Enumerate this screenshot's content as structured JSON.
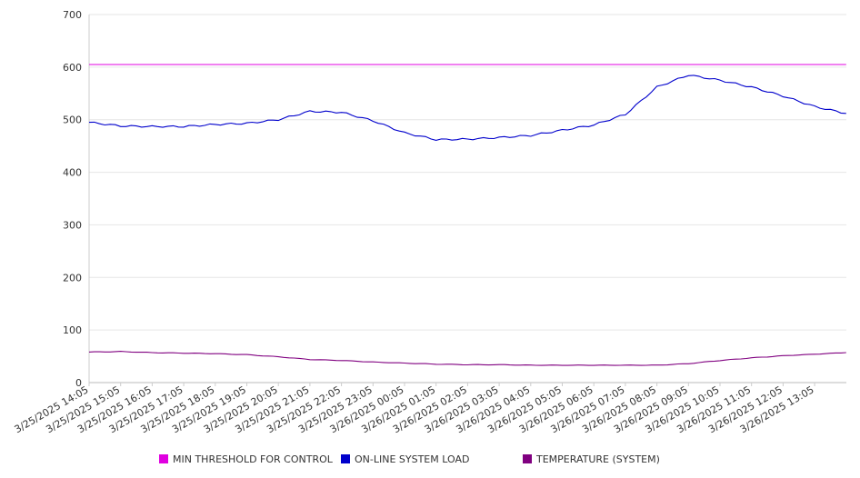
{
  "chart_data": {
    "type": "line",
    "y_ticks": [
      "0",
      "100",
      "200",
      "300",
      "400",
      "500",
      "600",
      "700"
    ],
    "ylim": [
      0,
      700
    ],
    "grid": true,
    "legend_placement": "bottom",
    "x_labels": [
      "3/25/2025 14:05",
      "3/25/2025 15:05",
      "3/25/2025 16:05",
      "3/25/2025 17:05",
      "3/25/2025 18:05",
      "3/25/2025 19:05",
      "3/25/2025 20:05",
      "3/25/2025 21:05",
      "3/25/2025 22:05",
      "3/25/2025 23:05",
      "3/26/2025 00:05",
      "3/26/2025 01:05",
      "3/26/2025 02:05",
      "3/26/2025 03:05",
      "3/26/2025 04:05",
      "3/26/2025 05:05",
      "3/26/2025 06:05",
      "3/26/2025 07:05",
      "3/26/2025 08:05",
      "3/26/2025 09:05",
      "3/26/2025 10:05",
      "3/26/2025 11:05",
      "3/26/2025 12:05",
      "3/26/2025 13:05"
    ],
    "x_end": "3/26/2025 14:05",
    "series": [
      {
        "name": "MIN THRESHOLD FOR CONTROL",
        "color": "#e000e0",
        "values": [
          605,
          605,
          605,
          605,
          605,
          605,
          605,
          605,
          605,
          605,
          605,
          605,
          605,
          605,
          605,
          605,
          605,
          605,
          605,
          605,
          605,
          605,
          605,
          605,
          605
        ]
      },
      {
        "name": "ON-LINE SYSTEM LOAD",
        "color": "#0000cc",
        "values": [
          495,
          488,
          487,
          487,
          491,
          493,
          500,
          516,
          514,
          498,
          475,
          462,
          463,
          466,
          470,
          480,
          490,
          510,
          562,
          585,
          575,
          562,
          545,
          525,
          512
        ]
      },
      {
        "name": "TEMPERATURE (SYSTEM)",
        "color": "#800080",
        "values": [
          58,
          59,
          57,
          56,
          55,
          53,
          49,
          44,
          42,
          39,
          37,
          35,
          34,
          34,
          33,
          33,
          33,
          33,
          33,
          36,
          42,
          47,
          51,
          54,
          57
        ]
      }
    ]
  }
}
